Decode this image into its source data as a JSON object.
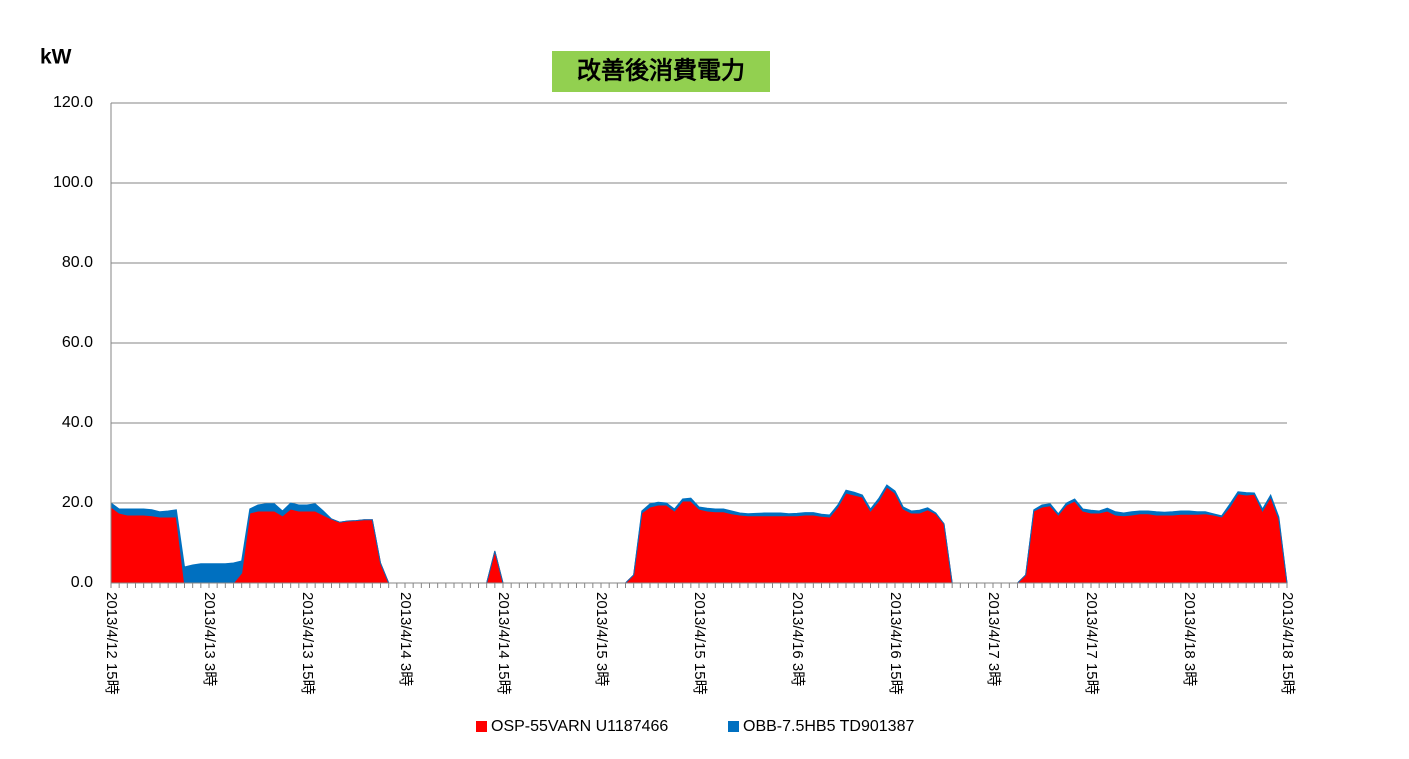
{
  "chart_data": {
    "type": "stacked-area",
    "title": "改善後消費電力",
    "y_label": "kW",
    "categories": [
      "2013/4/12 15時",
      null,
      null,
      null,
      null,
      null,
      null,
      null,
      null,
      null,
      null,
      null,
      "2013/4/13 3時",
      null,
      null,
      null,
      null,
      null,
      null,
      null,
      null,
      null,
      null,
      null,
      "2013/4/13 15時",
      null,
      null,
      null,
      null,
      null,
      null,
      null,
      null,
      null,
      null,
      null,
      "2013/4/14 3時",
      null,
      null,
      null,
      null,
      null,
      null,
      null,
      null,
      null,
      null,
      null,
      "2013/4/14 15時",
      null,
      null,
      null,
      null,
      null,
      null,
      null,
      null,
      null,
      null,
      null,
      "2013/4/15 3時",
      null,
      null,
      null,
      null,
      null,
      null,
      null,
      null,
      null,
      null,
      null,
      "2013/4/15 15時",
      null,
      null,
      null,
      null,
      null,
      null,
      null,
      null,
      null,
      null,
      null,
      "2013/4/16 3時",
      null,
      null,
      null,
      null,
      null,
      null,
      null,
      null,
      null,
      null,
      null,
      "2013/4/16 15時",
      null,
      null,
      null,
      null,
      null,
      null,
      null,
      null,
      null,
      null,
      null,
      "2013/4/17 3時",
      null,
      null,
      null,
      null,
      null,
      null,
      null,
      null,
      null,
      null,
      null,
      "2013/4/17 15時",
      null,
      null,
      null,
      null,
      null,
      null,
      null,
      null,
      null,
      null,
      null,
      "2013/4/18 3時",
      null,
      null,
      null,
      null,
      null,
      null,
      null,
      null,
      null,
      null,
      null,
      "2013/4/18 15時"
    ],
    "series": [
      {
        "name": "OSP-55VARN U1187466",
        "color": "#ff0000",
        "values": [
          19,
          17.5,
          17,
          17,
          17,
          16.8,
          16.5,
          16.5,
          16.5,
          0,
          0,
          0,
          0,
          0,
          0,
          0,
          2.5,
          17.5,
          18,
          18,
          18,
          16.8,
          18.5,
          18,
          18,
          18,
          17,
          16,
          15.2,
          15.5,
          15.6,
          15.8,
          15.8,
          5,
          0,
          0,
          0,
          0,
          0,
          0,
          0,
          0,
          0,
          0,
          0,
          0,
          0,
          8,
          0,
          0,
          0,
          0,
          0,
          0,
          0,
          0,
          0,
          0,
          0,
          0,
          0,
          0,
          0,
          0,
          2,
          17.5,
          19,
          19.5,
          19.5,
          18,
          20.5,
          20.5,
          18.5,
          18,
          17.8,
          17.8,
          17.3,
          17,
          16.8,
          16.8,
          16.8,
          16.8,
          16.8,
          16.8,
          16.8,
          17,
          17,
          16.7,
          16.5,
          19,
          22.5,
          22,
          21.5,
          18,
          20.5,
          24,
          22.5,
          18.5,
          17.5,
          17.5,
          18.3,
          17.3,
          14.8,
          0,
          0,
          0,
          0,
          0,
          0,
          0,
          0,
          0,
          2,
          18,
          19,
          19.3,
          17,
          19.5,
          20.5,
          18,
          17.5,
          17.5,
          18,
          17,
          16.8,
          17,
          17.3,
          17.3,
          17,
          17,
          17,
          17.2,
          17.2,
          17.2,
          17.3,
          17,
          16.5,
          19,
          22.3,
          22,
          22.2,
          18,
          21.5,
          16,
          0
        ]
      },
      {
        "name": "OBB-7.5HB5 TD901387",
        "color": "#0070c0",
        "values": [
          1,
          1,
          1.5,
          1.5,
          1.5,
          1.5,
          1.3,
          1.5,
          1.8,
          4,
          4.5,
          4.8,
          4.8,
          4.8,
          4.8,
          5,
          3,
          1,
          1.5,
          1.8,
          1.8,
          1.2,
          1.5,
          1.5,
          1.5,
          1.8,
          1,
          0,
          0,
          0,
          0,
          0,
          0,
          0,
          0,
          0,
          0,
          0,
          0,
          0,
          0,
          0,
          0,
          0,
          0,
          0,
          0,
          0,
          0,
          0,
          0,
          0,
          0,
          0,
          0,
          0,
          0,
          0,
          0,
          0,
          0,
          0,
          0,
          0,
          0,
          0.5,
          0.8,
          0.7,
          0.5,
          0.5,
          0.5,
          0.7,
          0.5,
          0.7,
          0.7,
          0.7,
          0.7,
          0.5,
          0.5,
          0.6,
          0.7,
          0.7,
          0.7,
          0.5,
          0.6,
          0.6,
          0.6,
          0.5,
          0.5,
          0.5,
          0.7,
          0.7,
          0.5,
          0.5,
          0.6,
          0.5,
          0.5,
          0.5,
          0.5,
          0.7,
          0.5,
          0.2,
          0,
          0,
          0,
          0,
          0,
          0,
          0,
          0,
          0,
          0,
          0,
          0.3,
          0.5,
          0.5,
          0.3,
          0.5,
          0.5,
          0.5,
          0.7,
          0.5,
          0.7,
          0.8,
          0.7,
          0.8,
          0.7,
          0.7,
          0.8,
          0.7,
          0.8,
          0.8,
          0.8,
          0.6,
          0.5,
          0.3,
          0.3,
          0.7,
          0.5,
          0.6,
          0.3,
          0.5,
          0.5,
          0.5,
          0
        ]
      }
    ],
    "ylim": [
      0,
      120
    ],
    "yticks": [
      {
        "value": 0,
        "label": "0.0"
      },
      {
        "value": 20,
        "label": "20.0"
      },
      {
        "value": 40,
        "label": "40.0"
      },
      {
        "value": 60,
        "label": "60.0"
      },
      {
        "value": 80,
        "label": "80.0"
      },
      {
        "value": 100,
        "label": "100.0"
      },
      {
        "value": 120,
        "label": "120.0"
      }
    ],
    "grid": true,
    "legend": "bottom"
  }
}
